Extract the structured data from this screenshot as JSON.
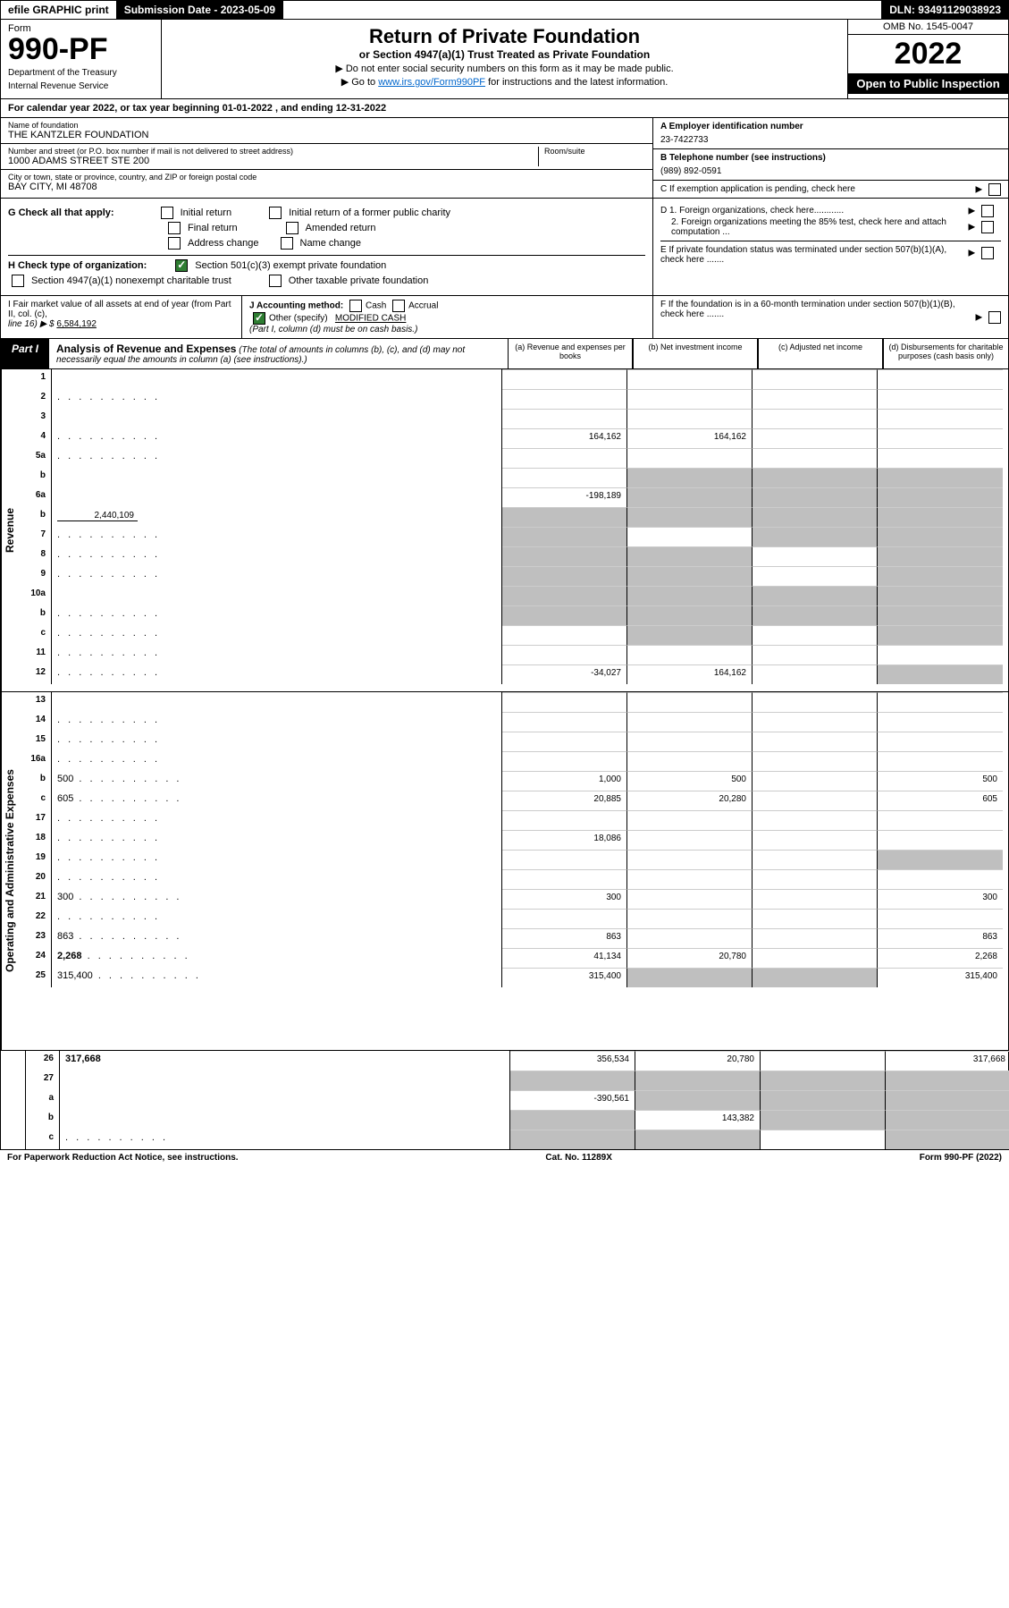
{
  "topbar": {
    "efile": "efile GRAPHIC print",
    "submission_label": "Submission Date - 2023-05-09",
    "dln_label": "DLN: 93491129038923"
  },
  "header": {
    "form_label": "Form",
    "form_number": "990-PF",
    "dept1": "Department of the Treasury",
    "dept2": "Internal Revenue Service",
    "title": "Return of Private Foundation",
    "subtitle": "or Section 4947(a)(1) Trust Treated as Private Foundation",
    "instr1": "▶ Do not enter social security numbers on this form as it may be made public.",
    "instr2_pre": "▶ Go to ",
    "instr2_link": "www.irs.gov/Form990PF",
    "instr2_post": " for instructions and the latest information.",
    "omb": "OMB No. 1545-0047",
    "year": "2022",
    "open": "Open to Public Inspection"
  },
  "cal_year": "For calendar year 2022, or tax year beginning 01-01-2022                          , and ending 12-31-2022",
  "info": {
    "name_label": "Name of foundation",
    "name": "THE KANTZLER FOUNDATION",
    "addr_label": "Number and street (or P.O. box number if mail is not delivered to street address)",
    "addr": "1000 ADAMS STREET STE 200",
    "room_label": "Room/suite",
    "city_label": "City or town, state or province, country, and ZIP or foreign postal code",
    "city": "BAY CITY, MI  48708",
    "a_label": "A Employer identification number",
    "a_val": "23-7422733",
    "b_label": "B Telephone number (see instructions)",
    "b_val": "(989) 892-0591",
    "c_label": "C If exemption application is pending, check here",
    "d1_label": "D 1. Foreign organizations, check here............",
    "d2_label": "2. Foreign organizations meeting the 85% test, check here and attach computation ...",
    "e_label": "E  If private foundation status was terminated under section 507(b)(1)(A), check here .......",
    "f_label": "F  If the foundation is in a 60-month termination under section 507(b)(1)(B), check here ......."
  },
  "checks": {
    "g_label": "G Check all that apply:",
    "g_opts": [
      "Initial return",
      "Initial return of a former public charity",
      "Final return",
      "Amended return",
      "Address change",
      "Name change"
    ],
    "h_label": "H Check type of organization:",
    "h_opt1": "Section 501(c)(3) exempt private foundation",
    "h_opt2": "Section 4947(a)(1) nonexempt charitable trust",
    "h_opt3": "Other taxable private foundation"
  },
  "hij": {
    "i_label": "I Fair market value of all assets at end of year (from Part II, col. (c),",
    "i_line": "line 16) ▶ $",
    "i_val": "6,584,192",
    "j_label": "J Accounting method:",
    "j_cash": "Cash",
    "j_accrual": "Accrual",
    "j_other": "Other (specify)",
    "j_other_val": "MODIFIED CASH",
    "j_note": "(Part I, column (d) must be on cash basis.)"
  },
  "part1": {
    "label": "Part I",
    "title": "Analysis of Revenue and Expenses",
    "note": "(The total of amounts in columns (b), (c), and (d) may not necessarily equal the amounts in column (a) (see instructions).)",
    "col_a": "(a)   Revenue and expenses per books",
    "col_b": "(b)   Net investment income",
    "col_c": "(c)   Adjusted net income",
    "col_d": "(d)   Disbursements for charitable purposes (cash basis only)"
  },
  "sides": {
    "revenue": "Revenue",
    "expenses": "Operating and Administrative Expenses"
  },
  "rows": [
    {
      "n": "1",
      "d": "",
      "a": "",
      "b": "",
      "c": ""
    },
    {
      "n": "2",
      "d": "",
      "a": "",
      "b": "",
      "c": "",
      "dots": true
    },
    {
      "n": "3",
      "d": "",
      "a": "",
      "b": "",
      "c": ""
    },
    {
      "n": "4",
      "d": "",
      "a": "164,162",
      "b": "164,162",
      "c": "",
      "dots": true
    },
    {
      "n": "5a",
      "d": "",
      "a": "",
      "b": "",
      "c": "",
      "dots": true
    },
    {
      "n": "b",
      "d": "",
      "a": "",
      "b": "",
      "c": "",
      "b_grey": true,
      "c_grey": true,
      "d_grey": true,
      "inline_box": true
    },
    {
      "n": "6a",
      "d": "",
      "a": "-198,189",
      "b": "",
      "c": "",
      "b_grey": true,
      "c_grey": true,
      "d_grey": true
    },
    {
      "n": "b",
      "d": "",
      "inline_val": "2,440,109",
      "a": "",
      "b": "",
      "c": "",
      "a_grey": true,
      "b_grey": true,
      "c_grey": true,
      "d_grey": true
    },
    {
      "n": "7",
      "d": "",
      "a": "",
      "b": "",
      "c": "",
      "a_grey": true,
      "c_grey": true,
      "d_grey": true,
      "dots": true
    },
    {
      "n": "8",
      "d": "",
      "a": "",
      "b": "",
      "c": "",
      "a_grey": true,
      "b_grey": true,
      "d_grey": true,
      "dots": true
    },
    {
      "n": "9",
      "d": "",
      "a": "",
      "b": "",
      "c": "",
      "a_grey": true,
      "b_grey": true,
      "d_grey": true,
      "dots": true
    },
    {
      "n": "10a",
      "d": "",
      "a": "",
      "b": "",
      "c": "",
      "a_grey": true,
      "b_grey": true,
      "c_grey": true,
      "d_grey": true,
      "inline_box": true
    },
    {
      "n": "b",
      "d": "",
      "a": "",
      "b": "",
      "c": "",
      "a_grey": true,
      "b_grey": true,
      "c_grey": true,
      "d_grey": true,
      "dots": true,
      "inline_box": true
    },
    {
      "n": "c",
      "d": "",
      "a": "",
      "b": "",
      "c": "",
      "b_grey": true,
      "d_grey": true,
      "dots": true
    },
    {
      "n": "11",
      "d": "",
      "a": "",
      "b": "",
      "c": "",
      "dots": true
    },
    {
      "n": "12",
      "d": "",
      "a": "-34,027",
      "b": "164,162",
      "c": "",
      "d_grey": true,
      "bold": true,
      "dots": true
    },
    {
      "n": "13",
      "d": "",
      "a": "",
      "b": "",
      "c": ""
    },
    {
      "n": "14",
      "d": "",
      "a": "",
      "b": "",
      "c": "",
      "dots": true
    },
    {
      "n": "15",
      "d": "",
      "a": "",
      "b": "",
      "c": "",
      "dots": true
    },
    {
      "n": "16a",
      "d": "",
      "a": "",
      "b": "",
      "c": "",
      "dots": true
    },
    {
      "n": "b",
      "d": "500",
      "a": "1,000",
      "b": "500",
      "c": "",
      "dots": true
    },
    {
      "n": "c",
      "d": "605",
      "a": "20,885",
      "b": "20,280",
      "c": "",
      "dots": true
    },
    {
      "n": "17",
      "d": "",
      "a": "",
      "b": "",
      "c": "",
      "dots": true
    },
    {
      "n": "18",
      "d": "",
      "a": "18,086",
      "b": "",
      "c": "",
      "dots": true
    },
    {
      "n": "19",
      "d": "",
      "a": "",
      "b": "",
      "c": "",
      "d_grey": true,
      "dots": true
    },
    {
      "n": "20",
      "d": "",
      "a": "",
      "b": "",
      "c": "",
      "dots": true
    },
    {
      "n": "21",
      "d": "300",
      "a": "300",
      "b": "",
      "c": "",
      "dots": true
    },
    {
      "n": "22",
      "d": "",
      "a": "",
      "b": "",
      "c": "",
      "dots": true
    },
    {
      "n": "23",
      "d": "863",
      "a": "863",
      "b": "",
      "c": "",
      "dots": true
    },
    {
      "n": "24",
      "d": "2,268",
      "a": "41,134",
      "b": "20,780",
      "c": "",
      "bold": true,
      "dots": true
    },
    {
      "n": "25",
      "d": "315,400",
      "a": "315,400",
      "b": "",
      "c": "",
      "b_grey": true,
      "c_grey": true,
      "dots": true
    },
    {
      "n": "26",
      "d": "317,668",
      "a": "356,534",
      "b": "20,780",
      "c": "",
      "bold": true
    },
    {
      "n": "27",
      "d": "",
      "a": "",
      "b": "",
      "c": "",
      "a_grey": true,
      "b_grey": true,
      "c_grey": true,
      "d_grey": true
    },
    {
      "n": "a",
      "d": "",
      "a": "-390,561",
      "b": "",
      "c": "",
      "b_grey": true,
      "c_grey": true,
      "d_grey": true,
      "bold": true
    },
    {
      "n": "b",
      "d": "",
      "a": "",
      "b": "143,382",
      "c": "",
      "a_grey": true,
      "c_grey": true,
      "d_grey": true,
      "bold": true
    },
    {
      "n": "c",
      "d": "",
      "a": "",
      "b": "",
      "c": "",
      "a_grey": true,
      "b_grey": true,
      "d_grey": true,
      "bold": true,
      "dots": true
    }
  ],
  "footer": {
    "left": "For Paperwork Reduction Act Notice, see instructions.",
    "mid": "Cat. No. 11289X",
    "right": "Form 990-PF (2022)"
  },
  "colors": {
    "grey": "#bfbfbf",
    "black": "#000000",
    "link": "#0066cc",
    "check_green": "#2e7d32"
  }
}
